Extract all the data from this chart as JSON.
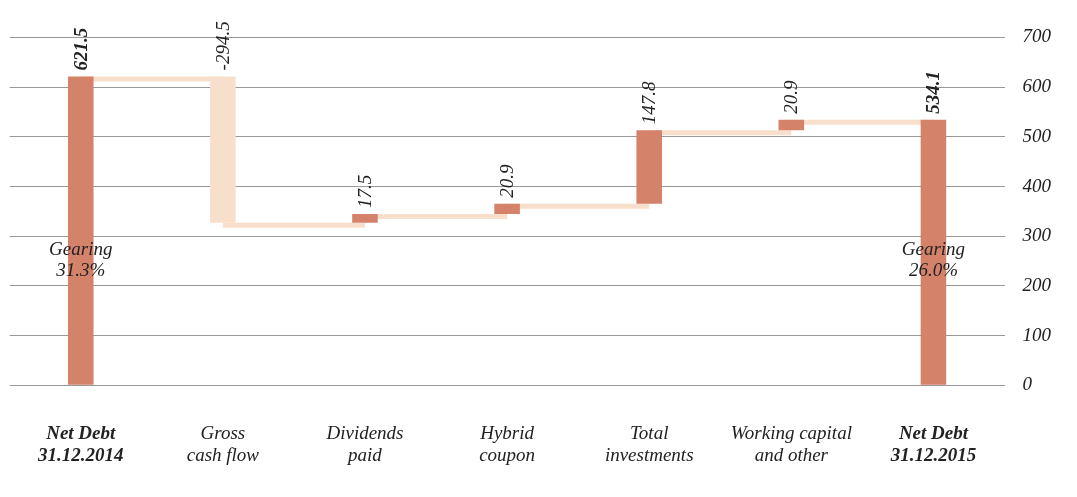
{
  "chart_data": {
    "type": "bar",
    "categories": [
      "Net Debt\n31.12.2014",
      "Gross\ncash flow",
      "Dividends\npaid",
      "Hybrid\ncoupon",
      "Total\ninvestments",
      "Working capital\nand other",
      "Net Debt\n31.12.2015"
    ],
    "values": [
      621.5,
      -294.5,
      17.5,
      20.9,
      147.8,
      20.9,
      534.1
    ],
    "base": [
      0,
      621.5,
      327,
      344.5,
      365.4,
      513.2,
      0
    ],
    "colors": [
      "#d4826a",
      "#f8dfcb",
      "#d4826a",
      "#d4826a",
      "#d4826a",
      "#d4826a",
      "#d4826a"
    ],
    "ylim": [
      0,
      700
    ],
    "yticks": [
      0,
      100,
      200,
      300,
      400,
      500,
      600,
      700
    ],
    "grid": "y",
    "legend": false,
    "data_labels": true,
    "annotations": [
      "Gearing\n31.3%",
      "Gearing\n26.0%"
    ]
  }
}
